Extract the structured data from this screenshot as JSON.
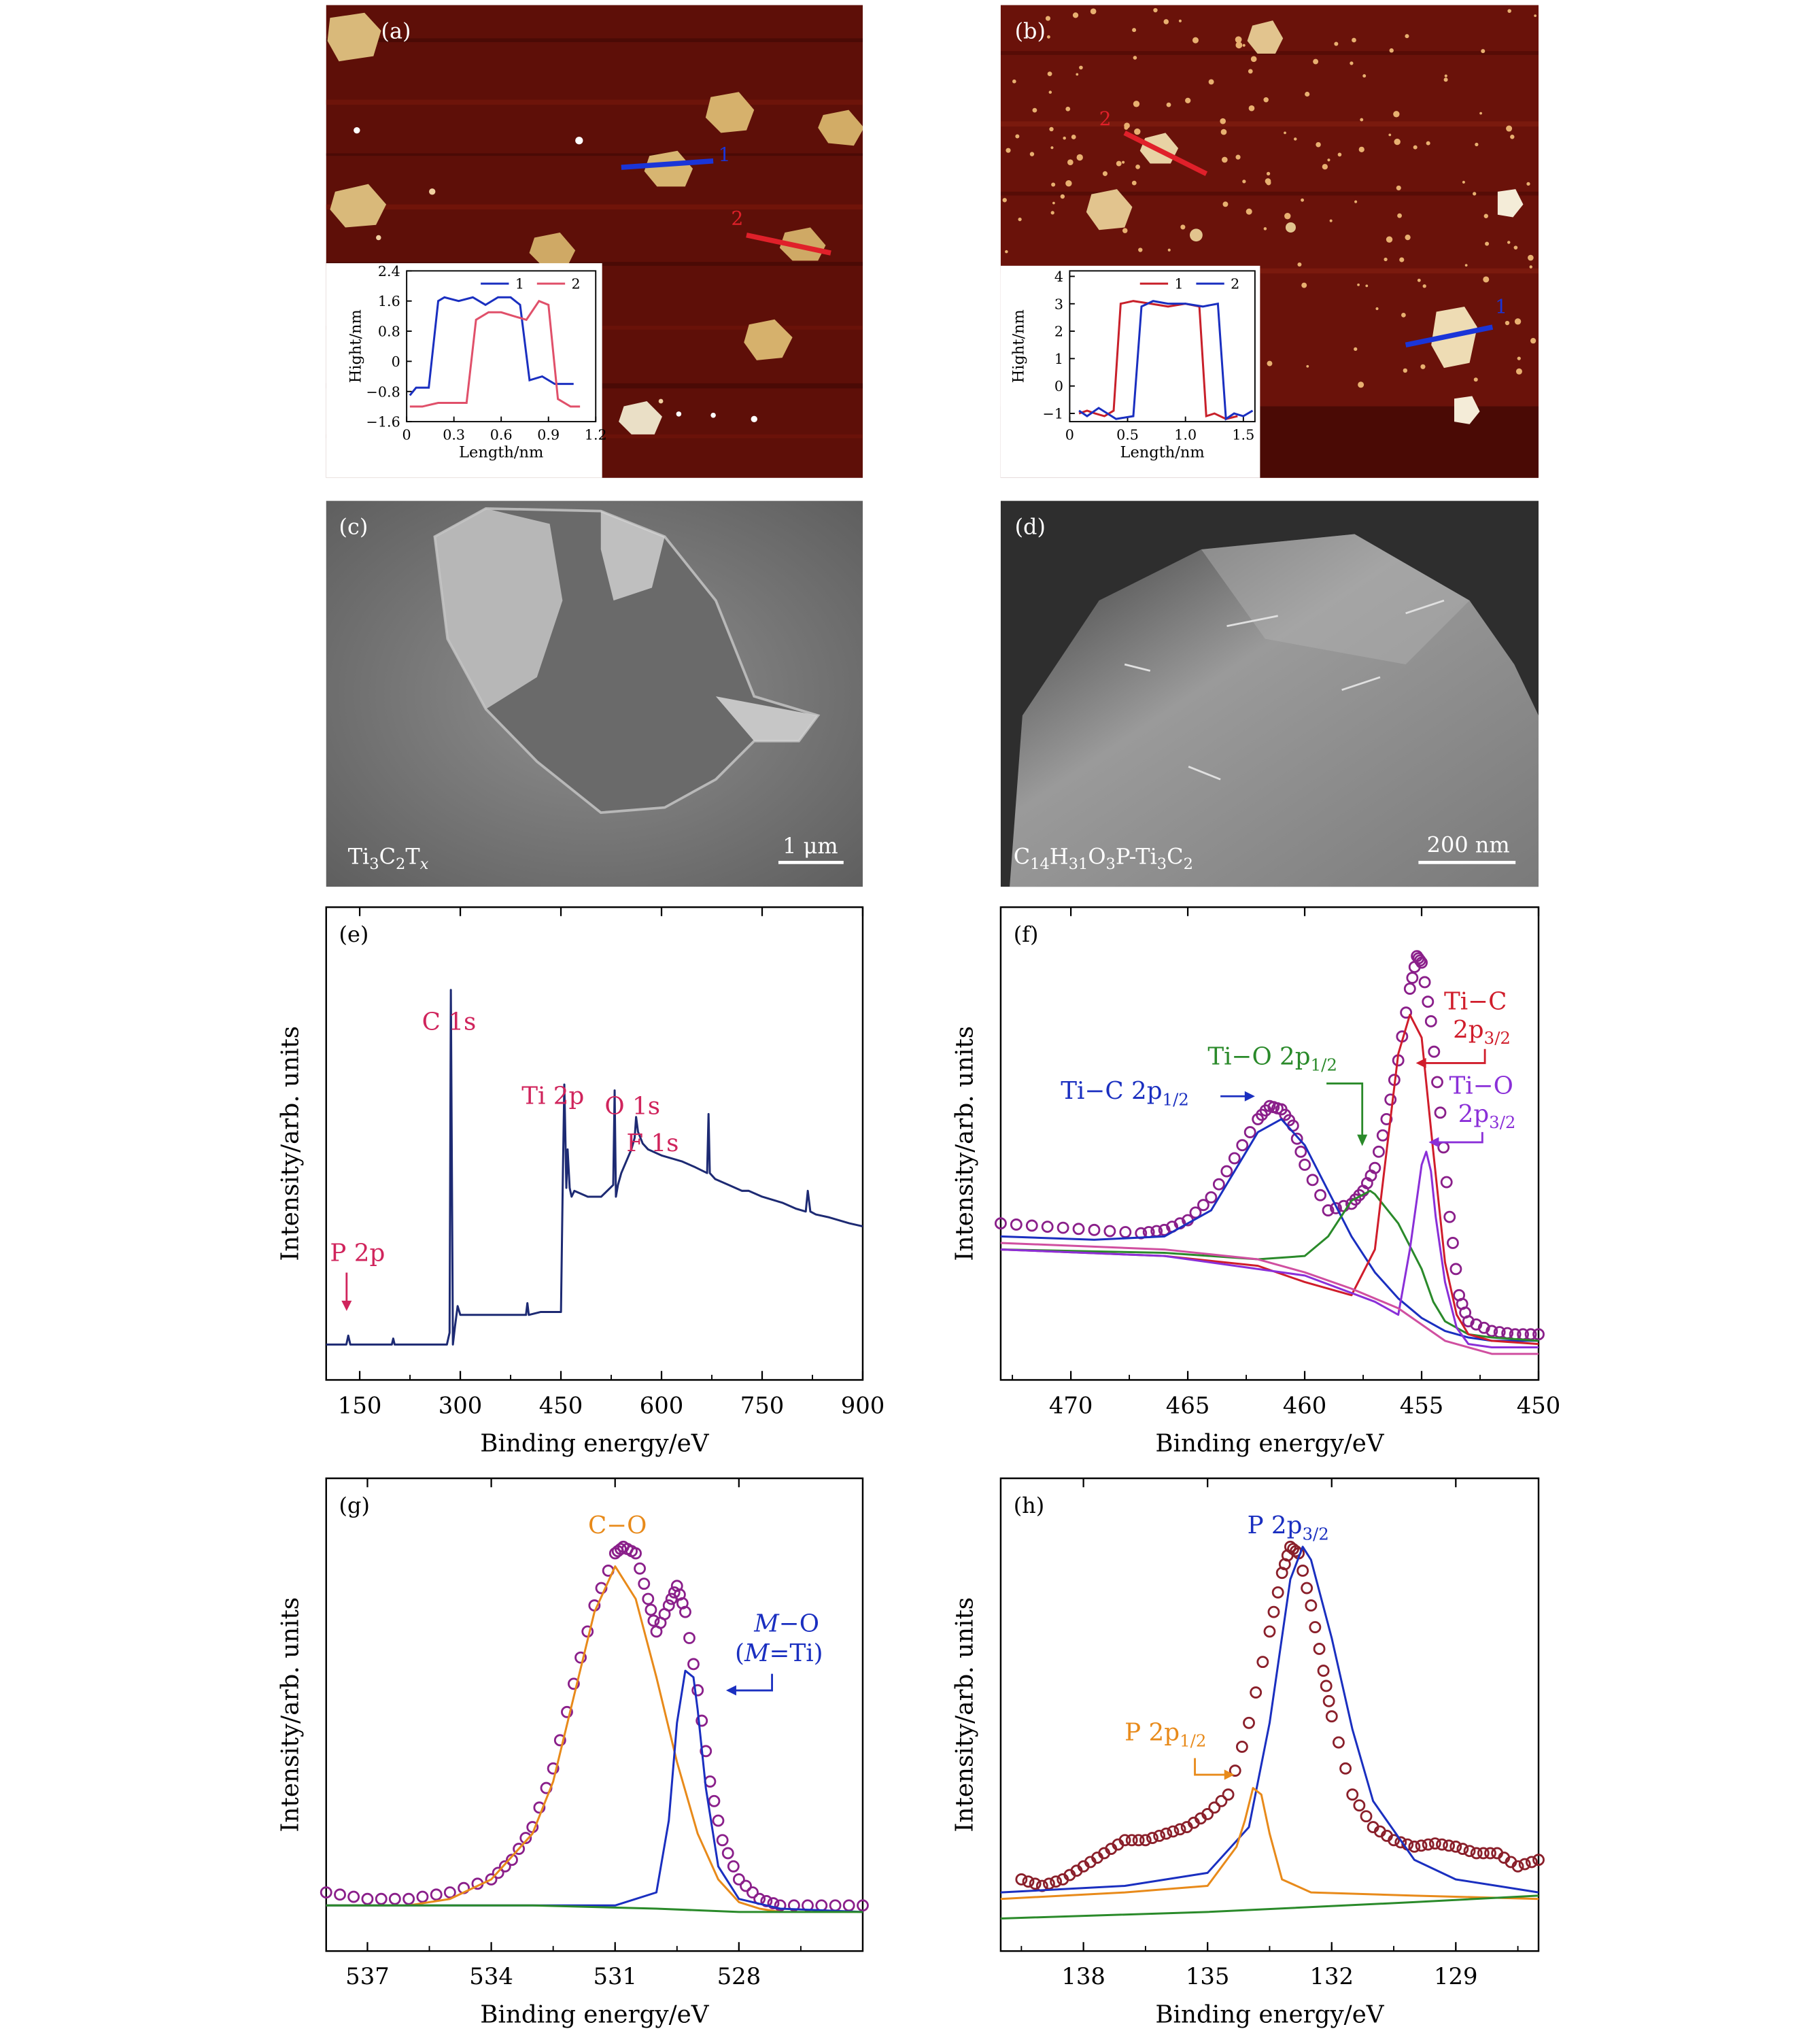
{
  "chart_data": [
    {
      "panel": "(a)",
      "type": "image-with-inset-line",
      "image_markers": [
        "1",
        "2"
      ],
      "inset": {
        "type": "line",
        "xlabel": "Length/nm",
        "ylabel": "Hight/nm",
        "xlim": [
          0,
          1.2
        ],
        "ylim": [
          -1.6,
          2.4
        ],
        "xticks": [
          "0",
          "0.3",
          "0.6",
          "0.9",
          "1.2"
        ],
        "yticks": [
          "2.4",
          "1.6",
          "0.8",
          "0",
          "−0.8",
          "−1.6"
        ],
        "legend": [
          "1",
          "2"
        ],
        "series": [
          {
            "name": "1",
            "color": "#1a2fc0",
            "x": [
              0.02,
              0.06,
              0.14,
              0.2,
              0.24,
              0.33,
              0.42,
              0.5,
              0.58,
              0.66,
              0.72,
              0.78,
              0.86,
              0.94,
              1.02,
              1.06
            ],
            "y": [
              -0.9,
              -0.7,
              -0.7,
              1.6,
              1.7,
              1.6,
              1.7,
              1.5,
              1.7,
              1.7,
              1.5,
              -0.5,
              -0.4,
              -0.6,
              -0.6,
              -0.6
            ]
          },
          {
            "name": "2",
            "color": "#e0506a",
            "x": [
              0.02,
              0.1,
              0.2,
              0.28,
              0.38,
              0.44,
              0.52,
              0.6,
              0.68,
              0.76,
              0.84,
              0.9,
              0.96,
              1.04,
              1.1
            ],
            "y": [
              -1.2,
              -1.2,
              -1.1,
              -1.1,
              -1.1,
              1.1,
              1.3,
              1.3,
              1.2,
              1.1,
              1.6,
              1.5,
              -1.0,
              -1.2,
              -1.2
            ]
          }
        ]
      }
    },
    {
      "panel": "(b)",
      "type": "image-with-inset-line",
      "image_markers": [
        "1",
        "2"
      ],
      "inset": {
        "type": "line",
        "xlabel": "Length/nm",
        "ylabel": "Hight/nm",
        "xlim": [
          0,
          1.6
        ],
        "ylim": [
          -1.3,
          4.2
        ],
        "xticks": [
          "0",
          "0.5",
          "1.0",
          "1.5"
        ],
        "yticks": [
          "4",
          "3",
          "2",
          "1",
          "0",
          "−1"
        ],
        "legend": [
          "1",
          "2"
        ],
        "series": [
          {
            "name": "1",
            "color": "#c8202a",
            "x": [
              0.08,
              0.15,
              0.22,
              0.3,
              0.38,
              0.44,
              0.55,
              0.7,
              0.85,
              1.0,
              1.12,
              1.18,
              1.25,
              1.35,
              1.45
            ],
            "y": [
              -1.0,
              -0.9,
              -1.0,
              -1.1,
              -0.9,
              3.0,
              3.1,
              3.0,
              2.9,
              3.0,
              2.9,
              -1.1,
              -1.0,
              -1.2,
              -1.1
            ]
          },
          {
            "name": "2",
            "color": "#1a2fc0",
            "x": [
              0.08,
              0.15,
              0.25,
              0.4,
              0.55,
              0.62,
              0.72,
              0.85,
              1.0,
              1.15,
              1.28,
              1.35,
              1.42,
              1.5,
              1.58
            ],
            "y": [
              -0.9,
              -1.1,
              -0.8,
              -1.2,
              -1.1,
              2.9,
              3.1,
              3.0,
              3.0,
              2.9,
              3.0,
              -1.2,
              -1.0,
              -1.1,
              -0.9
            ]
          }
        ]
      }
    },
    {
      "panel": "(c)",
      "type": "sem-image",
      "sample_label": "Ti3C2Tx",
      "scale_bar": "1 μm"
    },
    {
      "panel": "(d)",
      "type": "sem-image",
      "sample_label": "C14H31O3P-Ti3C2",
      "scale_bar": "200 nm"
    },
    {
      "panel": "(e)",
      "type": "line",
      "xlabel": "Binding energy/eV",
      "ylabel": "Intensity/arb. units",
      "xlim": [
        100,
        900
      ],
      "ylim": [
        0,
        1.6
      ],
      "xticks": [
        150,
        300,
        450,
        600,
        750,
        900
      ],
      "annotations": [
        "C 1s",
        "Ti 2p",
        "O 1s",
        "F 1s",
        "P 2p"
      ],
      "series": [
        {
          "color": "#1d2a73",
          "x": [
            100,
            130,
            133,
            136,
            150,
            175,
            198,
            200,
            202,
            230,
            260,
            280,
            284,
            286,
            289,
            292,
            296,
            300,
            320,
            350,
            390,
            398,
            400,
            402,
            420,
            450,
            453,
            455,
            456,
            458,
            460,
            463,
            466,
            470,
            490,
            510,
            528,
            530,
            532,
            535,
            540,
            555,
            560,
            562,
            565,
            572,
            580,
            600,
            630,
            650,
            668,
            670,
            672,
            680,
            700,
            720,
            730,
            750,
            780,
            800,
            815,
            818,
            822,
            830,
            850,
            880,
            900
          ],
          "y": [
            0.12,
            0.12,
            0.15,
            0.12,
            0.12,
            0.12,
            0.12,
            0.14,
            0.12,
            0.12,
            0.12,
            0.12,
            0.16,
            1.32,
            0.12,
            0.18,
            0.25,
            0.22,
            0.22,
            0.22,
            0.22,
            0.22,
            0.26,
            0.22,
            0.23,
            0.23,
            0.7,
            1.0,
            0.9,
            0.65,
            0.78,
            0.65,
            0.62,
            0.64,
            0.62,
            0.62,
            0.66,
            0.98,
            0.62,
            0.66,
            0.7,
            0.78,
            0.82,
            0.89,
            0.84,
            0.8,
            0.78,
            0.76,
            0.74,
            0.72,
            0.7,
            0.9,
            0.7,
            0.68,
            0.66,
            0.64,
            0.64,
            0.62,
            0.6,
            0.58,
            0.57,
            0.64,
            0.57,
            0.56,
            0.55,
            0.53,
            0.52
          ]
        }
      ]
    },
    {
      "panel": "(f)",
      "type": "line",
      "xlabel": "Binding energy/eV",
      "ylabel": "Intensity/arb. units",
      "xlim": [
        473,
        450
      ],
      "ylim": [
        0,
        1.45
      ],
      "xticks": [
        470,
        465,
        460,
        455,
        450
      ],
      "annotations": [
        "Ti−C 2p1/2",
        "Ti−O 2p1/2",
        "Ti−C 2p3/2",
        "Ti−O 2p3/2"
      ],
      "series": [
        {
          "name": "measured",
          "style": "markers",
          "color": "#8a1f8a",
          "x": [
            473,
            471,
            469,
            467,
            466,
            465,
            464,
            463,
            462,
            461.5,
            461,
            460.5,
            460,
            459,
            458,
            457.5,
            457,
            456.5,
            456,
            455.5,
            455.2,
            455,
            454.6,
            454.2,
            453.8,
            453.4,
            453,
            452,
            451,
            450
          ],
          "y": [
            0.48,
            0.47,
            0.46,
            0.45,
            0.46,
            0.49,
            0.56,
            0.68,
            0.8,
            0.84,
            0.83,
            0.78,
            0.66,
            0.52,
            0.54,
            0.58,
            0.65,
            0.8,
            0.98,
            1.2,
            1.3,
            1.28,
            1.1,
            0.82,
            0.5,
            0.26,
            0.18,
            0.15,
            0.14,
            0.14
          ]
        },
        {
          "name": "Ti-C 2p1/2 fit",
          "color": "#1a2fc0",
          "x": [
            473,
            469,
            466,
            464,
            463,
            462,
            461,
            460,
            459,
            458,
            457,
            456,
            455,
            454,
            453,
            452,
            450
          ],
          "y": [
            0.44,
            0.43,
            0.44,
            0.52,
            0.64,
            0.76,
            0.8,
            0.72,
            0.58,
            0.44,
            0.33,
            0.25,
            0.19,
            0.15,
            0.13,
            0.12,
            0.12
          ]
        },
        {
          "name": "Ti-O 2p1/2 fit",
          "color": "#2a8a2a",
          "x": [
            473,
            466,
            462,
            460,
            459,
            458,
            457.2,
            457,
            456,
            455,
            454.5,
            454,
            453,
            452,
            450
          ],
          "y": [
            0.4,
            0.39,
            0.37,
            0.38,
            0.44,
            0.55,
            0.58,
            0.57,
            0.48,
            0.34,
            0.24,
            0.18,
            0.14,
            0.13,
            0.12
          ]
        },
        {
          "name": "Ti-C 2p3/2 fit",
          "color": "#d01d2b",
          "x": [
            473,
            466,
            462,
            460,
            458,
            457,
            456.5,
            456,
            455.5,
            455,
            454.5,
            454,
            453.5,
            453,
            452,
            450
          ],
          "y": [
            0.4,
            0.38,
            0.35,
            0.3,
            0.26,
            0.4,
            0.7,
            1.0,
            1.12,
            1.05,
            0.7,
            0.36,
            0.2,
            0.14,
            0.12,
            0.11
          ]
        },
        {
          "name": "Ti-O 2p3/2 fit",
          "color": "#8a2fd8",
          "x": [
            473,
            466,
            460,
            457,
            456,
            455.5,
            455,
            454.8,
            454.6,
            454.4,
            454,
            453.5,
            453,
            452,
            450
          ],
          "y": [
            0.4,
            0.38,
            0.32,
            0.24,
            0.2,
            0.4,
            0.66,
            0.7,
            0.64,
            0.5,
            0.3,
            0.16,
            0.11,
            0.1,
            0.1
          ]
        },
        {
          "name": "background",
          "color": "#d04fa0",
          "x": [
            473,
            466,
            462,
            460,
            458,
            456,
            454,
            452,
            450
          ],
          "y": [
            0.42,
            0.4,
            0.37,
            0.33,
            0.28,
            0.22,
            0.12,
            0.08,
            0.08
          ]
        }
      ]
    },
    {
      "panel": "(g)",
      "type": "line",
      "xlabel": "Binding energy/eV",
      "ylabel": "Intensity/arb. units",
      "xlim": [
        538,
        525
      ],
      "ylim": [
        0,
        1.45
      ],
      "xticks": [
        537,
        534,
        531,
        528
      ],
      "annotations": [
        "C−O",
        "M−O",
        "(M=Ti)"
      ],
      "series": [
        {
          "name": "measured",
          "style": "markers",
          "color": "#8a1f8a",
          "x": [
            538,
            537,
            536,
            535,
            534,
            533.5,
            533,
            532.5,
            532,
            531.5,
            531,
            530.8,
            530.5,
            530.2,
            530,
            529.7,
            529.5,
            529.3,
            529,
            528.7,
            528.4,
            528,
            527.5,
            527,
            526,
            525
          ],
          "y": [
            0.18,
            0.16,
            0.16,
            0.18,
            0.22,
            0.28,
            0.38,
            0.56,
            0.82,
            1.06,
            1.22,
            1.24,
            1.22,
            1.08,
            0.98,
            1.06,
            1.12,
            1.04,
            0.8,
            0.52,
            0.34,
            0.22,
            0.16,
            0.14,
            0.14,
            0.14
          ]
        },
        {
          "name": "C-O fit",
          "color": "#e88a1a",
          "x": [
            538,
            536,
            535,
            534,
            533,
            532.5,
            532,
            531.5,
            531,
            530.5,
            530,
            529.5,
            529,
            528.5,
            528,
            527.5,
            527
          ],
          "y": [
            0.14,
            0.14,
            0.16,
            0.22,
            0.36,
            0.52,
            0.78,
            1.04,
            1.18,
            1.08,
            0.84,
            0.58,
            0.36,
            0.22,
            0.15,
            0.13,
            0.12
          ]
        },
        {
          "name": "M-O fit",
          "color": "#1a2fc0",
          "x": [
            538,
            531,
            530,
            529.7,
            529.5,
            529.3,
            529.1,
            529,
            528.8,
            528.5,
            528,
            527,
            525
          ],
          "y": [
            0.14,
            0.14,
            0.18,
            0.4,
            0.7,
            0.86,
            0.84,
            0.74,
            0.5,
            0.26,
            0.16,
            0.13,
            0.12
          ]
        },
        {
          "name": "background",
          "color": "#2a8a2a",
          "x": [
            538,
            533,
            530,
            528,
            526,
            525
          ],
          "y": [
            0.14,
            0.14,
            0.13,
            0.12,
            0.12,
            0.12
          ]
        }
      ]
    },
    {
      "panel": "(h)",
      "type": "line",
      "xlabel": "Binding energy/eV",
      "ylabel": "Intensity/arb. units",
      "xlim": [
        140,
        127
      ],
      "ylim": [
        0,
        1.45
      ],
      "xticks": [
        138,
        135,
        132,
        129
      ],
      "annotations": [
        "P 2p3/2",
        "P 2p1/2"
      ],
      "series": [
        {
          "name": "measured",
          "style": "markers",
          "color": "#8a1f2a",
          "x": [
            139.5,
            139,
            138.5,
            138,
            137.5,
            137,
            136.5,
            136,
            135.5,
            135,
            134.5,
            134,
            133.5,
            133.2,
            133,
            132.8,
            132.5,
            132.2,
            132,
            131.5,
            131,
            130.5,
            130,
            129.5,
            129,
            128.5,
            128,
            127.5,
            127
          ],
          "y": [
            0.22,
            0.2,
            0.22,
            0.26,
            0.3,
            0.34,
            0.34,
            0.36,
            0.38,
            0.42,
            0.48,
            0.7,
            0.98,
            1.16,
            1.24,
            1.22,
            1.06,
            0.86,
            0.72,
            0.48,
            0.38,
            0.34,
            0.32,
            0.33,
            0.32,
            0.3,
            0.3,
            0.26,
            0.28
          ]
        },
        {
          "name": "P 2p3/2 fit",
          "color": "#1a2fc0",
          "x": [
            140,
            137,
            135,
            134,
            133.5,
            133,
            132.7,
            132.5,
            132,
            131.5,
            131,
            130,
            129,
            128,
            127
          ],
          "y": [
            0.18,
            0.2,
            0.24,
            0.38,
            0.7,
            1.14,
            1.24,
            1.2,
            0.96,
            0.68,
            0.46,
            0.28,
            0.22,
            0.2,
            0.18
          ]
        },
        {
          "name": "P 2p1/2 fit",
          "color": "#e88a1a",
          "x": [
            140,
            137,
            135,
            134.3,
            134.1,
            133.9,
            133.7,
            133.5,
            133.2,
            132.5,
            130,
            127
          ],
          "y": [
            0.16,
            0.18,
            0.2,
            0.32,
            0.4,
            0.5,
            0.48,
            0.36,
            0.22,
            0.18,
            0.17,
            0.16
          ]
        },
        {
          "name": "background",
          "color": "#2a8a2a",
          "x": [
            140,
            135,
            130,
            127
          ],
          "y": [
            0.1,
            0.12,
            0.15,
            0.17
          ]
        }
      ]
    }
  ]
}
